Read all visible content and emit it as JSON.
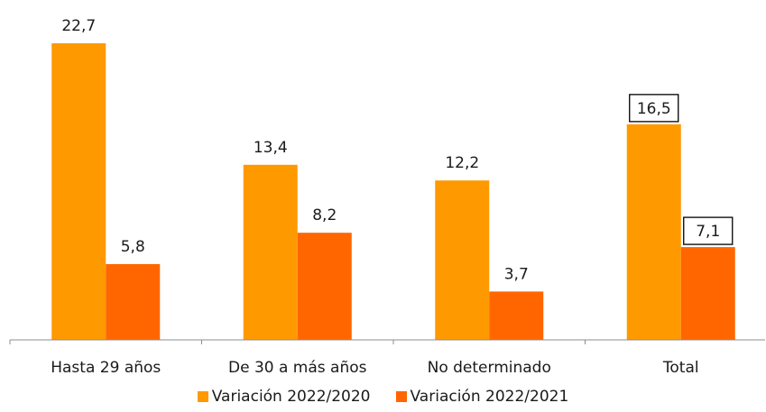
{
  "chart_data": {
    "type": "bar",
    "categories": [
      "Hasta 29 años",
      "De 30 a más años",
      "No determinado",
      "Total"
    ],
    "series": [
      {
        "name": "Variación 2022/2020",
        "values": [
          22.7,
          13.4,
          12.2,
          16.5
        ],
        "labels": [
          "22,7",
          "13,4",
          "12,2",
          "16,5"
        ],
        "color": "#FF9900"
      },
      {
        "name": "Variación 2022/2021",
        "values": [
          5.8,
          8.2,
          3.7,
          7.1
        ],
        "labels": [
          "5,8",
          "8,2",
          "3,7",
          "7,1"
        ],
        "color": "#FF6600"
      }
    ],
    "boxed_labels_category": "Total",
    "ylim": [
      0,
      22.7
    ],
    "grid": false,
    "legend_position": "bottom"
  }
}
